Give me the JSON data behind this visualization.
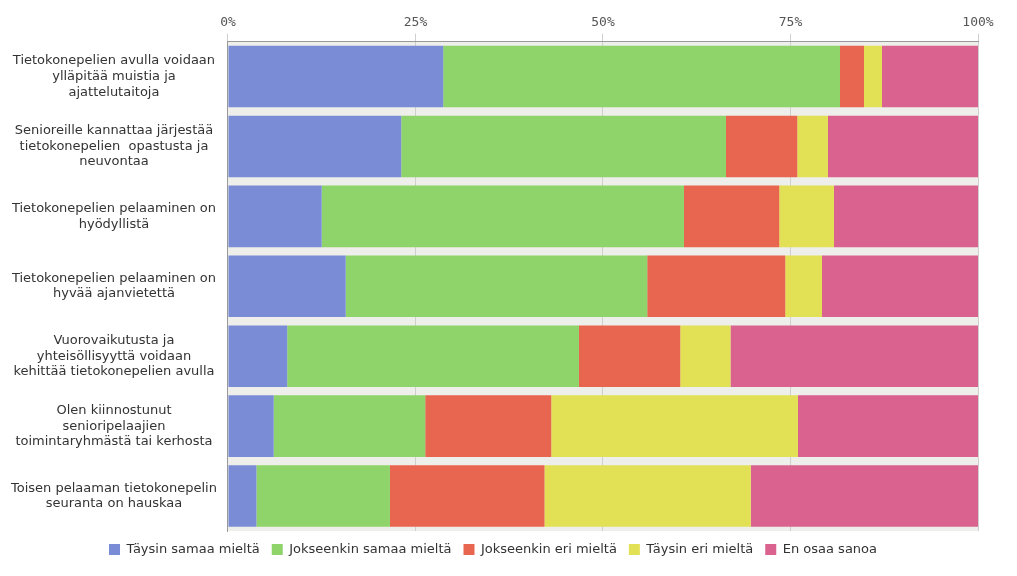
{
  "chart_data": {
    "type": "bar",
    "orientation": "horizontal",
    "stacked": true,
    "categories": [
      "Tietokonepelien avulla voidaan ylläpitää muistia ja ajattelutaitoja",
      "Senioreille kannattaa järjestää tietokonepelien  opastusta ja neuvontaa",
      "Tietokonepelien pelaaminen on hyödyllistä",
      "Tietokonepelien pelaaminen on hyvää ajanvietettä",
      "Vuorovaikutusta ja yhteisöllisyyttä voidaan kehittää tietokonepelien avulla",
      "Olen kiinnostunut senioripelaajien toimintaryhmästä tai kerhosta",
      "Toisen pelaaman tietokonepelin seuranta on hauskaa"
    ],
    "series": [
      {
        "name": "Täysin samaa mieltä",
        "color": "#7b8cd6",
        "values": [
          28.7,
          23.1,
          12.5,
          15.7,
          7.9,
          6.1,
          3.8
        ]
      },
      {
        "name": "Jokseenkin samaa mieltä",
        "color": "#8fd46a",
        "values": [
          52.9,
          43.3,
          48.3,
          40.2,
          38.9,
          20.2,
          17.8
        ]
      },
      {
        "name": "Jokseenkin eri mieltä",
        "color": "#e8654f",
        "values": [
          3.2,
          9.5,
          12.7,
          18.4,
          13.5,
          16.8,
          20.6
        ]
      },
      {
        "name": "Täysin eri mieltä",
        "color": "#e2e055",
        "values": [
          2.4,
          4.1,
          7.3,
          4.9,
          6.7,
          32.9,
          27.5
        ]
      },
      {
        "name": "En osaa sanoa",
        "color": "#d9628f",
        "values": [
          12.8,
          20.0,
          19.2,
          20.8,
          33.0,
          24.0,
          30.3
        ]
      }
    ],
    "xlim": [
      0,
      100
    ],
    "xticks": [
      {
        "value": 0,
        "label": "0%"
      },
      {
        "value": 25,
        "label": "25%"
      },
      {
        "value": 50,
        "label": "50%"
      },
      {
        "value": 75,
        "label": "75%"
      },
      {
        "value": 100,
        "label": "100%"
      }
    ],
    "grid": "x",
    "legend": "bottom"
  }
}
